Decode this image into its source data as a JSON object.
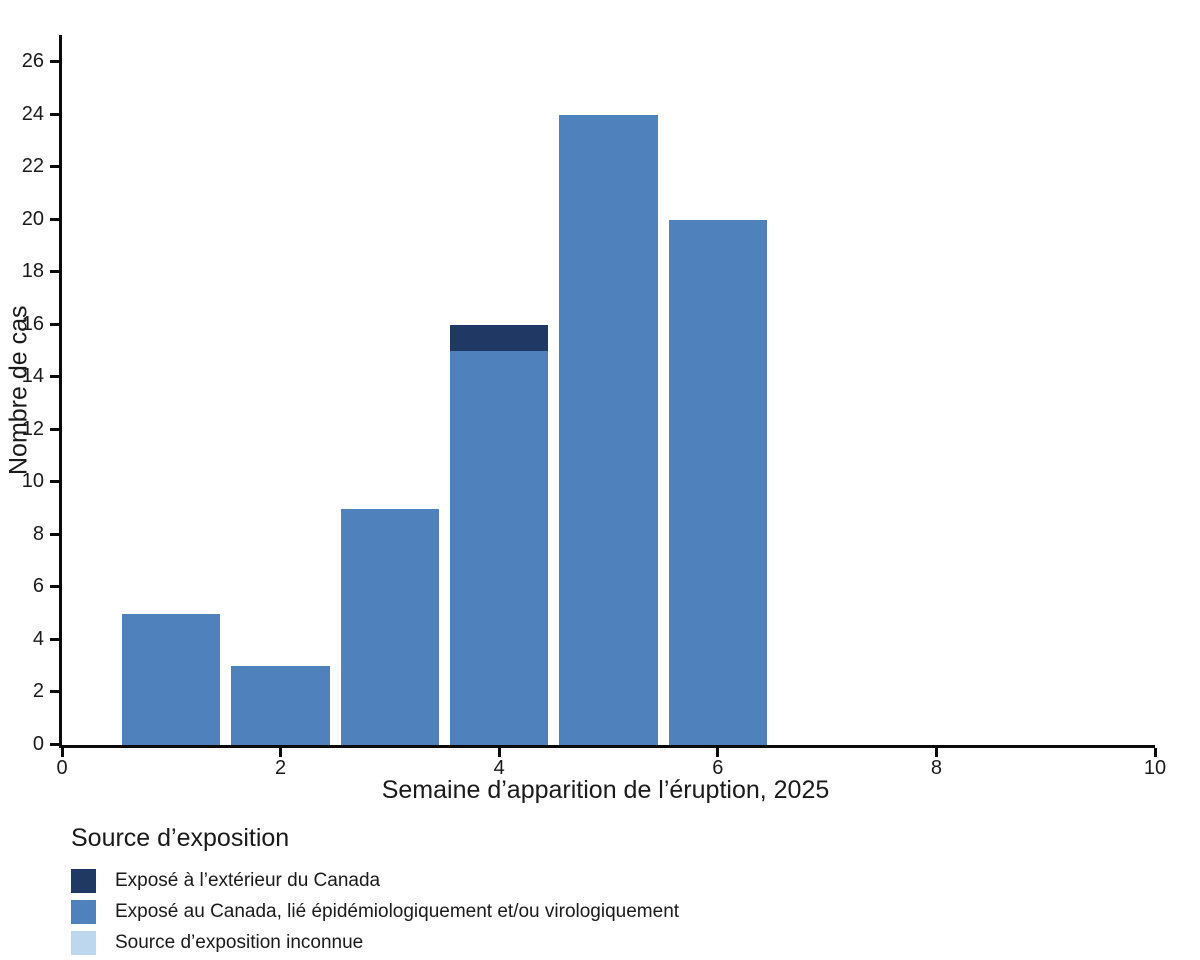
{
  "chart_data": {
    "type": "bar",
    "stacked": true,
    "title": "",
    "xlabel": "Semaine d’apparition de l’éruption, 2025",
    "ylabel": "Nombre de cas",
    "x": [
      1,
      2,
      3,
      4,
      5,
      6
    ],
    "series": [
      {
        "name": "Exposé à l’extérieur du Canada",
        "color": "#1f3864",
        "values": [
          0,
          0,
          0,
          1,
          0,
          0
        ]
      },
      {
        "name": "Exposé au Canada, lié épidémiologiquement et/ou virologiquement",
        "color": "#4f81bd",
        "values": [
          5,
          3,
          9,
          15,
          24,
          20
        ]
      },
      {
        "name": "Source d’exposition inconnue",
        "color": "#bdd7ee",
        "values": [
          0,
          0,
          0,
          0,
          0,
          0
        ]
      }
    ],
    "totals": [
      5,
      3,
      9,
      16,
      24,
      20
    ],
    "xlim": [
      0,
      10
    ],
    "ylim": [
      0,
      26
    ],
    "x_ticks": [
      0,
      2,
      4,
      6,
      8,
      10
    ],
    "y_tick_step": 2,
    "bar_width": 0.9,
    "grid": false,
    "legend_title": "Source d’exposition",
    "legend_position": "bottom-left",
    "axis_color": "#0a0a0a"
  }
}
